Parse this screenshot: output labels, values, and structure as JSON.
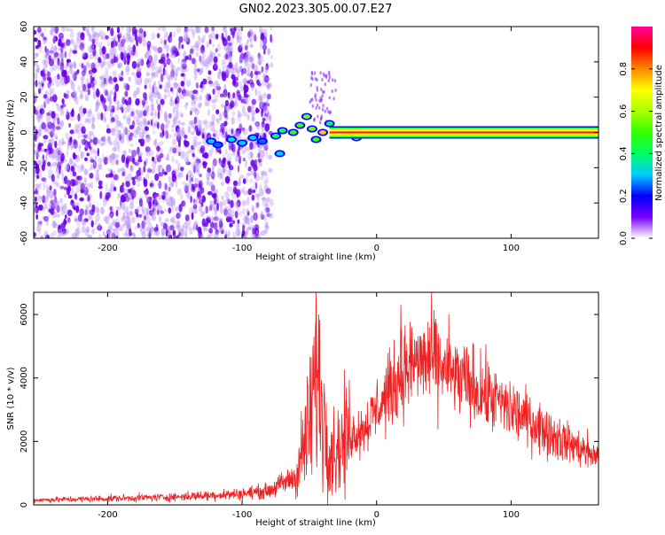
{
  "title": "GN02.2023.305.00.07.E27",
  "colors": {
    "axis": "#000000",
    "snr_line": "#ee2222"
  },
  "chart_data": [
    {
      "type": "heatmap",
      "name": "spectrogram",
      "xlabel": "Height of straight line (km)",
      "ylabel": "Frequency (Hz)",
      "xlim": [
        -255,
        165
      ],
      "ylim": [
        -60,
        60
      ],
      "xticks": [
        -200,
        -100,
        0,
        100
      ],
      "yticks": [
        -60,
        -40,
        -20,
        0,
        20,
        40,
        60
      ],
      "noise_region_x": [
        -255,
        -78
      ],
      "band": {
        "x": [
          -35,
          165
        ],
        "y": [
          -2,
          2
        ],
        "level": 0.95
      },
      "blobs": [
        {
          "x": -123,
          "y": -5,
          "level": 0.3
        },
        {
          "x": -118,
          "y": -7,
          "level": 0.25
        },
        {
          "x": -108,
          "y": -4,
          "level": 0.35
        },
        {
          "x": -100,
          "y": -6,
          "level": 0.3
        },
        {
          "x": -92,
          "y": -3,
          "level": 0.3
        },
        {
          "x": -85,
          "y": -5,
          "level": 0.25
        },
        {
          "x": -75,
          "y": -2,
          "level": 0.4
        },
        {
          "x": -72,
          "y": -12,
          "level": 0.3
        },
        {
          "x": -70,
          "y": 1,
          "level": 0.45
        },
        {
          "x": -62,
          "y": 0,
          "level": 0.5
        },
        {
          "x": -57,
          "y": 4,
          "level": 0.5
        },
        {
          "x": -52,
          "y": 9,
          "level": 0.55
        },
        {
          "x": -48,
          "y": 2,
          "level": 0.55
        },
        {
          "x": -45,
          "y": -4,
          "level": 0.5
        },
        {
          "x": -40,
          "y": 0,
          "level": 0.75
        },
        {
          "x": -35,
          "y": 5,
          "level": 0.4
        },
        {
          "x": -25,
          "y": 1,
          "level": 0.6
        },
        {
          "x": -15,
          "y": -3,
          "level": 0.55
        },
        {
          "x": -8,
          "y": 0,
          "level": 0.6
        },
        {
          "x": 87,
          "y": 1,
          "level": 0.35
        }
      ],
      "colorbar": {
        "label": "Normalized spectral amplitude",
        "range": [
          0,
          1
        ],
        "ticks": [
          0.0,
          0.2,
          0.4,
          0.6,
          0.8
        ],
        "tick_labels": [
          "0.0",
          "0.2",
          "0.4",
          "0.6",
          "0.8"
        ]
      }
    },
    {
      "type": "line",
      "name": "snr",
      "xlabel": "Height of straight line (km)",
      "ylabel": "SNR (10 * v/v)",
      "xlim": [
        -255,
        165
      ],
      "ylim": [
        0,
        6700
      ],
      "xticks": [
        -200,
        -100,
        0,
        100
      ],
      "yticks": [
        0,
        2000,
        4000,
        6000
      ],
      "envelope": {
        "x": [
          -255,
          -200,
          -150,
          -100,
          -80,
          -60,
          -50,
          -45,
          -40,
          -35,
          -30,
          -20,
          -10,
          0,
          10,
          20,
          30,
          40,
          50,
          60,
          80,
          100,
          120,
          140,
          165
        ],
        "y": [
          150,
          200,
          250,
          350,
          450,
          900,
          2500,
          4000,
          3000,
          1800,
          1700,
          2200,
          2400,
          3000,
          3600,
          4200,
          4500,
          4600,
          4300,
          4000,
          3500,
          3000,
          2500,
          2000,
          1500
        ]
      },
      "peaks": [
        {
          "x": -45,
          "y": 6700
        },
        {
          "x": -43,
          "y": 6000
        },
        {
          "x": 18,
          "y": 6300
        },
        {
          "x": 26,
          "y": 5600
        },
        {
          "x": 35,
          "y": 5400
        }
      ]
    }
  ]
}
